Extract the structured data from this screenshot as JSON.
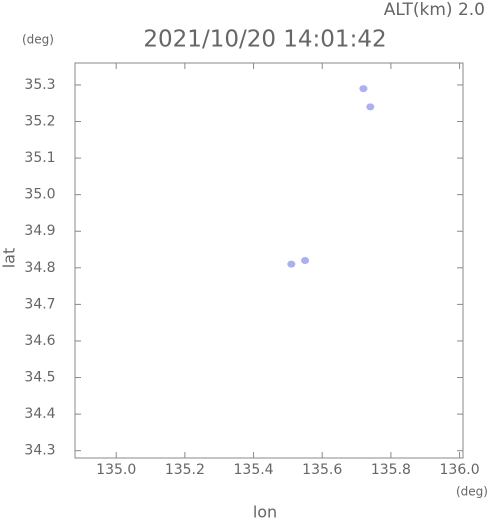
{
  "chart_data": {
    "type": "scatter",
    "title": "2021/10/20 14:01:42",
    "subtitle": "ALT(km) 2.0",
    "y_unit": "(deg)",
    "x_unit": "(deg)",
    "x_label": "lon",
    "y_label": "lat",
    "xlim": [
      134.88,
      136.01
    ],
    "ylim": [
      34.28,
      35.36
    ],
    "xticks": [
      {
        "value": 135.0,
        "label": "135.0"
      },
      135.2,
      135.4,
      135.6,
      135.8,
      {
        "value": 136.0,
        "label": "136.0"
      }
    ],
    "yticks": [
      34.3,
      34.4,
      34.5,
      34.6,
      34.7,
      34.8,
      34.9,
      {
        "value": 35.0,
        "label": "35.0"
      },
      35.1,
      35.2,
      35.3
    ],
    "series": [
      {
        "color": "#aab0f0",
        "x": [
          135.72,
          135.74,
          135.51,
          135.55
        ],
        "values": [
          35.29,
          35.24,
          34.81,
          34.82
        ]
      }
    ]
  }
}
